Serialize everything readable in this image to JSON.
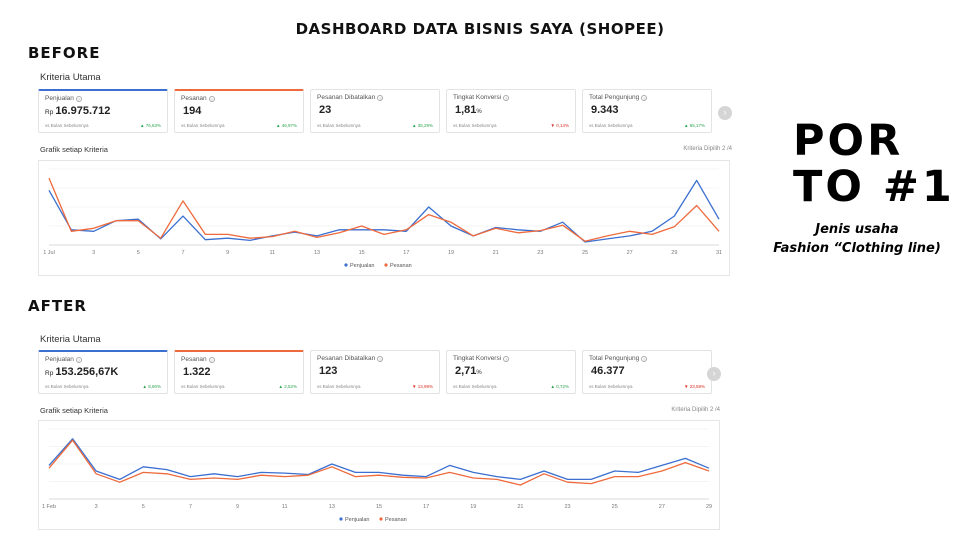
{
  "title": "DASHBOARD DATA BISNIS SAYA (SHOPEE)",
  "porto_line1": "POR",
  "porto_line2": "TO #1",
  "business_type_line1": "Jenis usaha",
  "business_type_line2": "Fashion “Clothing line)",
  "colors": {
    "blue": "#3b6fd0",
    "orange": "#ee6a3c",
    "up": "#2ea44f",
    "down": "#d93025"
  },
  "before": {
    "section_label": "BEFORE",
    "heading": "Kriteria Utama",
    "graph_title": "Grafik setiap Kriteria",
    "criteria_selected": "Kriteria Dipilih 2 /4",
    "cards": [
      {
        "label": "Penjualan",
        "prefix": "Rp",
        "value": "16.975.712",
        "suffix": "",
        "compare": "vs Bulan Sebelumnya",
        "direction": "up",
        "change": "76,63%"
      },
      {
        "label": "Pesanan",
        "prefix": "",
        "value": "194",
        "suffix": "",
        "compare": "vs Bulan Sebelumnya",
        "direction": "up",
        "change": "46,97%"
      },
      {
        "label": "Pesanan Dibatalkan",
        "prefix": "",
        "value": "23",
        "suffix": "",
        "compare": "vs Bulan Sebelumnya",
        "direction": "up",
        "change": "35,29%"
      },
      {
        "label": "Tingkat Konversi",
        "prefix": "",
        "value": "1,81",
        "suffix": "%",
        "compare": "vs Bulan Sebelumnya",
        "direction": "down",
        "change": "0,14%"
      },
      {
        "label": "Total Pengunjung",
        "prefix": "",
        "value": "9.343",
        "suffix": "",
        "compare": "vs Bulan Sebelumnya",
        "direction": "up",
        "change": "65,17%"
      }
    ],
    "chart_data": {
      "type": "line",
      "x": [
        "1 Jul",
        "2",
        "3",
        "4",
        "5",
        "6",
        "7",
        "8",
        "9",
        "10",
        "11",
        "12",
        "13",
        "14",
        "15",
        "16",
        "17",
        "18",
        "19",
        "20",
        "21",
        "22",
        "23",
        "24",
        "25",
        "26",
        "27",
        "28",
        "29",
        "30",
        "31"
      ],
      "tick_labels": [
        "1 Jul",
        "3",
        "5",
        "7",
        "9",
        "11",
        "13",
        "15",
        "17",
        "19",
        "21",
        "23",
        "25",
        "27",
        "29",
        "31"
      ],
      "ylim": [
        0,
        100
      ],
      "legend": "bottom-center",
      "series": [
        {
          "name": "Penjualan",
          "color": "#3b6fd0",
          "values": [
            72,
            20,
            18,
            32,
            34,
            8,
            38,
            7,
            9,
            6,
            12,
            17,
            12,
            20,
            20,
            20,
            18,
            50,
            25,
            12,
            23,
            20,
            18,
            30,
            4,
            8,
            12,
            18,
            38,
            85,
            34
          ]
        },
        {
          "name": "Pesanan",
          "color": "#ee6a3c",
          "values": [
            88,
            18,
            22,
            32,
            32,
            9,
            58,
            14,
            14,
            9,
            11,
            18,
            10,
            16,
            25,
            14,
            20,
            40,
            30,
            12,
            22,
            16,
            19,
            26,
            5,
            12,
            18,
            14,
            24,
            52,
            18
          ]
        }
      ]
    }
  },
  "after": {
    "section_label": "AFTER",
    "heading": "Kriteria Utama",
    "graph_title": "Grafik setiap Kriteria",
    "criteria_selected": "Kriteria Dipilih 2 /4",
    "cards": [
      {
        "label": "Penjualan",
        "prefix": "Rp",
        "value": "153.256,67K",
        "suffix": "",
        "compare": "vs Bulan Sebelumnya",
        "direction": "up",
        "change": "8,80%"
      },
      {
        "label": "Pesanan",
        "prefix": "",
        "value": "1.322",
        "suffix": "",
        "compare": "vs Bulan Sebelumnya",
        "direction": "up",
        "change": "2,52%"
      },
      {
        "label": "Pesanan Dibatalkan",
        "prefix": "",
        "value": "123",
        "suffix": "",
        "compare": "vs Bulan Sebelumnya",
        "direction": "down",
        "change": "13,99%"
      },
      {
        "label": "Tingkat Konversi",
        "prefix": "",
        "value": "2,71",
        "suffix": "%",
        "compare": "vs Bulan Sebelumnya",
        "direction": "up",
        "change": "0,72%"
      },
      {
        "label": "Total Pengunjung",
        "prefix": "",
        "value": "46.377",
        "suffix": "",
        "compare": "vs Bulan Sebelumnya",
        "direction": "down",
        "change": "23,58%"
      }
    ],
    "chart_data": {
      "type": "line",
      "x": [
        "1 Feb",
        "2",
        "3",
        "4",
        "5",
        "6",
        "7",
        "8",
        "9",
        "10",
        "11",
        "12",
        "13",
        "14",
        "15",
        "16",
        "17",
        "18",
        "19",
        "20",
        "21",
        "22",
        "23",
        "24",
        "25",
        "26",
        "27",
        "28",
        "29"
      ],
      "tick_labels": [
        "1 Feb",
        "3",
        "5",
        "7",
        "9",
        "11",
        "13",
        "15",
        "17",
        "19",
        "21",
        "23",
        "25",
        "27",
        "29"
      ],
      "ylim": [
        0,
        100
      ],
      "legend": "bottom-center",
      "series": [
        {
          "name": "Penjualan",
          "color": "#3b6fd0",
          "values": [
            48,
            86,
            40,
            28,
            46,
            42,
            32,
            36,
            32,
            38,
            37,
            35,
            50,
            38,
            38,
            34,
            32,
            48,
            38,
            32,
            28,
            40,
            28,
            28,
            40,
            38,
            48,
            58,
            44
          ]
        },
        {
          "name": "Pesanan",
          "color": "#ee6a3c",
          "values": [
            44,
            84,
            36,
            24,
            38,
            36,
            28,
            30,
            28,
            34,
            32,
            34,
            46,
            32,
            34,
            31,
            30,
            38,
            30,
            28,
            20,
            36,
            24,
            22,
            32,
            32,
            40,
            52,
            40
          ]
        }
      ]
    }
  }
}
